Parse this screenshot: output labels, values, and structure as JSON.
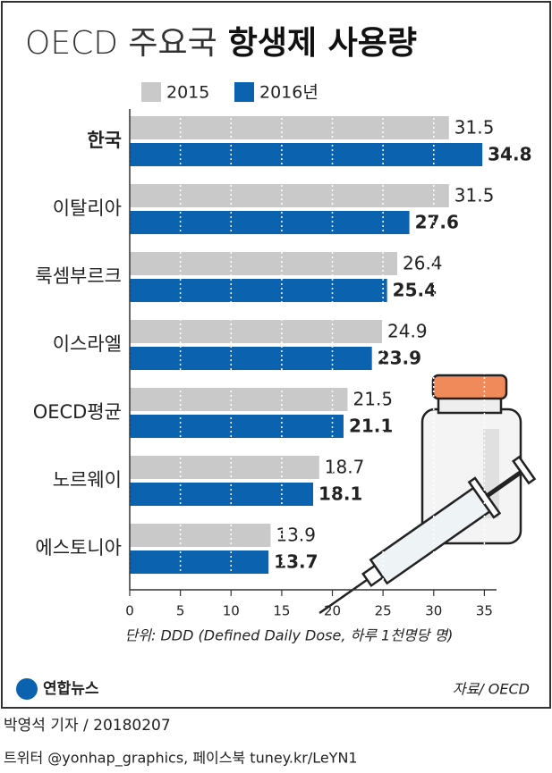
{
  "chart_data": {
    "type": "bar",
    "orientation": "horizontal",
    "title": "OECD 주요국",
    "title_emphasis": "항생제 사용량",
    "categories": [
      "한국",
      "이탈리아",
      "룩셈부르크",
      "이스라엘",
      "OECD평균",
      "노르웨이",
      "에스토니아"
    ],
    "series": [
      {
        "name": "2015",
        "color": "#c9c9c9",
        "values": [
          31.5,
          31.5,
          26.4,
          24.9,
          21.5,
          18.7,
          13.9
        ]
      },
      {
        "name": "2016년",
        "color": "#0b63b0",
        "values": [
          34.8,
          27.6,
          25.4,
          23.9,
          21.1,
          18.1,
          13.7
        ]
      }
    ],
    "xlim": [
      0,
      36.2
    ],
    "xticks": [
      0,
      5,
      10,
      15,
      20,
      25,
      30,
      35
    ],
    "grid": true,
    "note": "단위: DDD (Defined Daily Dose, 하루 1천명당 명)",
    "source": "자료/ OECD",
    "logo": "연합뉴스",
    "byline": "박영석 기자 / 20180207",
    "social": "트위터 @yonhap_graphics, 페이스북 tuney.kr/LeYN1"
  }
}
